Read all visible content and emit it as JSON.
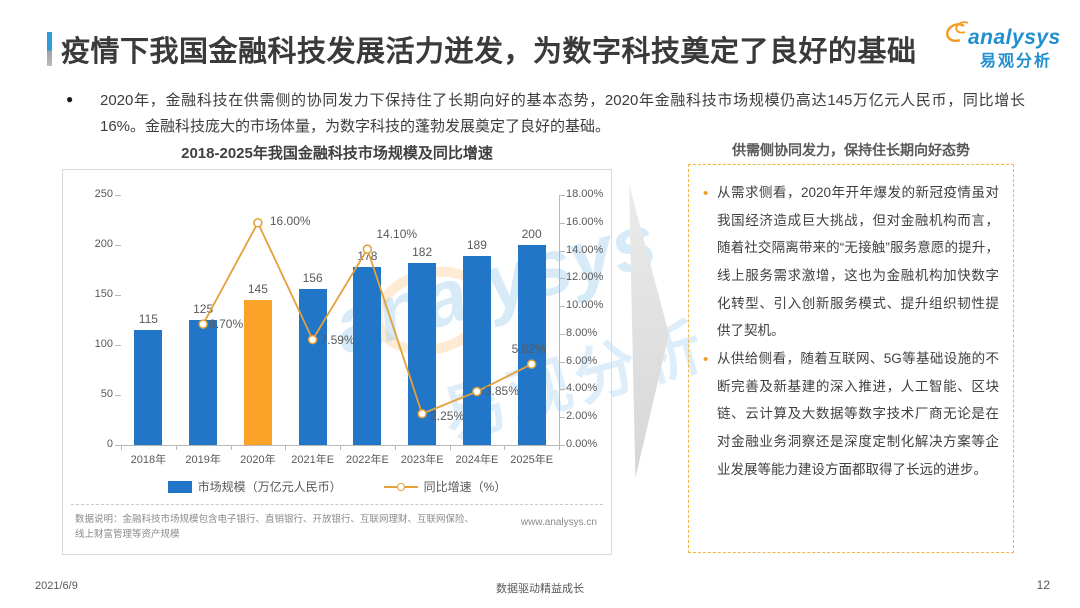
{
  "page": {
    "title": "疫情下我国金融科技发展活力迸发，为数字科技奠定了良好的基础",
    "lead_bullet": "●",
    "lead_text": "2020年，金融科技在供需侧的协同发力下保持住了长期向好的基本态势，2020年金融科技市场规模仍高达145万亿元人民币，同比增长16%。金融科技庞大的市场体量，为数字科技的蓬勃发展奠定了良好的基础。"
  },
  "logo": {
    "brand_en": "analysys",
    "brand_cn": "易观分析"
  },
  "chart_data": {
    "type": "bar",
    "title": "2018-2025年我国金融科技市场规模及同比增速",
    "categories": [
      "2018年",
      "2019年",
      "2020年",
      "2021年E",
      "2022年E",
      "2023年E",
      "2024年E",
      "2025年E"
    ],
    "series": [
      {
        "name": "市场规模（万亿元人民币）",
        "type": "bar",
        "values": [
          115,
          125,
          145,
          156,
          178,
          182,
          189,
          200
        ]
      },
      {
        "name": "同比增速（%）",
        "type": "line",
        "values": [
          null,
          8.7,
          16.0,
          7.59,
          14.1,
          2.25,
          3.85,
          5.82
        ],
        "point_labels": [
          null,
          "8.70%",
          "16.00%",
          "7.59%",
          "14.10%",
          "2.25%",
          "3.85%",
          "5.82%"
        ]
      }
    ],
    "left_axis": {
      "ticks": [
        0,
        50,
        100,
        150,
        200,
        250
      ],
      "max": 250
    },
    "right_axis": {
      "tick_labels": [
        "0.00%",
        "2.00%",
        "4.00%",
        "6.00%",
        "8.00%",
        "10.00%",
        "12.00%",
        "14.00%",
        "16.00%",
        "18.00%"
      ],
      "max": 18
    },
    "bar_color": "#2176c7",
    "highlight_color": "#faa328",
    "highlight_index": 2,
    "line_color": "#e2a139",
    "legend_position": "bottom",
    "grid": false,
    "footnote": "数据说明：金融科技市场规模包含电子银行、直销银行、开放银行、互联网理财、互联网保险、线上财富管理等资产规模",
    "source_url": "www.analysys.cn"
  },
  "right_panel": {
    "title": "供需侧协同发力，保持住长期向好态势",
    "bullets": [
      "从需求侧看，2020年开年爆发的新冠疫情虽对我国经济造成巨大挑战，但对金融机构而言，随着社交隔离带来的“无接触”服务意愿的提升，线上服务需求激增，这也为金融机构加快数字化转型、引入创新服务模式、提升组织韧性提供了契机。",
      "从供给侧看，随着互联网、5G等基础设施的不断完善及新基建的深入推进，人工智能、区块链、云计算及大数据等数字技术厂商无论是在对金融业务洞察还是深度定制化解决方案等企业发展等能力建设方面都取得了长远的进步。"
    ]
  },
  "watermark": {
    "text_en": "analysys",
    "text_cn": "易观分析"
  },
  "footer": {
    "date": "2021/6/9",
    "slogan": "数据驱动精益成长",
    "page_number": "12"
  },
  "colors": {
    "accent_blue": "#2e9bda",
    "brand_blue": "#1f8fce",
    "panel_border_orange": "#f2b445",
    "bullet_orange": "#f0a029"
  }
}
